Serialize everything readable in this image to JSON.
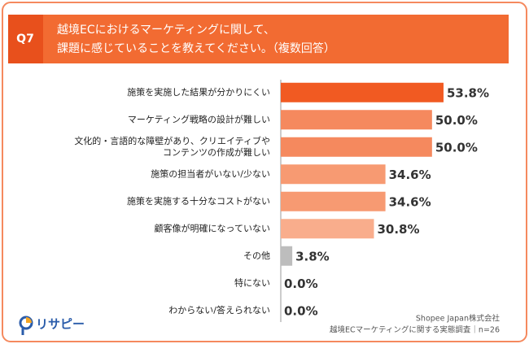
{
  "question": "Q7",
  "chart_data": {
    "type": "hbar",
    "title": [
      "越境ECにおけるマーケティングに関して、",
      "課題に感じていることを教えてください。（複数回答）"
    ],
    "categories": [
      "施策を実施した結果が分かりにくい",
      "マーケティング戦略の設計が難しい",
      "文化的・言語的な障壁があり、クリエイティブや\nコンテンツの作成が難しい",
      "施策の担当者がいない/少ない",
      "施策を実施する十分なコストがない",
      "顧客像が明確になっていない",
      "その他",
      "特にない",
      "わからない/答えられない"
    ],
    "values": [
      53.8,
      50.0,
      50.0,
      34.6,
      34.6,
      30.8,
      3.8,
      0.0,
      0.0
    ],
    "value_labels": [
      "53.8%",
      "50.0%",
      "50.0%",
      "34.6%",
      "34.6%",
      "30.8%",
      "3.8%",
      "0.0%",
      "0.0%"
    ],
    "colors": [
      "#f15a22",
      "#f5895e",
      "#f5895e",
      "#f79a72",
      "#f79a72",
      "#f9ad8c",
      "#bdbdbd",
      "#bdbdbd",
      "#bdbdbd"
    ],
    "xlim": [
      0,
      60
    ]
  },
  "source": [
    "Shopee Japan株式会社",
    "越境ECマーケティングに関する実態調査｜n=26"
  ],
  "logo": "リサピー"
}
